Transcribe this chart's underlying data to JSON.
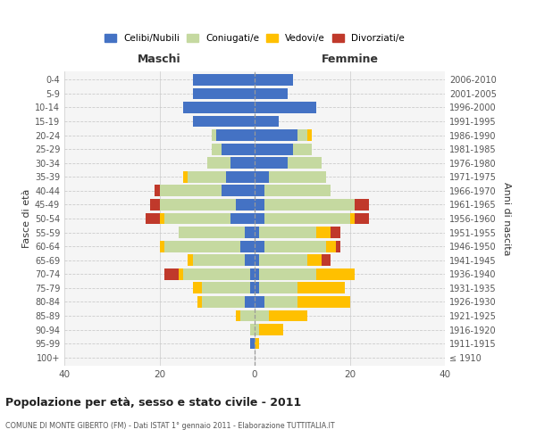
{
  "age_groups": [
    "100+",
    "95-99",
    "90-94",
    "85-89",
    "80-84",
    "75-79",
    "70-74",
    "65-69",
    "60-64",
    "55-59",
    "50-54",
    "45-49",
    "40-44",
    "35-39",
    "30-34",
    "25-29",
    "20-24",
    "15-19",
    "10-14",
    "5-9",
    "0-4"
  ],
  "birth_years": [
    "≤ 1910",
    "1911-1915",
    "1916-1920",
    "1921-1925",
    "1926-1930",
    "1931-1935",
    "1936-1940",
    "1941-1945",
    "1946-1950",
    "1951-1955",
    "1956-1960",
    "1961-1965",
    "1966-1970",
    "1971-1975",
    "1976-1980",
    "1981-1985",
    "1986-1990",
    "1991-1995",
    "1996-2000",
    "2001-2005",
    "2006-2010"
  ],
  "maschi": {
    "celibi": [
      0,
      1,
      0,
      0,
      2,
      1,
      1,
      2,
      3,
      2,
      5,
      4,
      7,
      6,
      5,
      7,
      8,
      13,
      15,
      13,
      13
    ],
    "coniugati": [
      0,
      0,
      1,
      3,
      9,
      10,
      14,
      11,
      16,
      14,
      14,
      16,
      13,
      8,
      5,
      2,
      1,
      0,
      0,
      0,
      0
    ],
    "vedovi": [
      0,
      0,
      0,
      1,
      1,
      2,
      1,
      1,
      1,
      0,
      1,
      0,
      0,
      1,
      0,
      0,
      0,
      0,
      0,
      0,
      0
    ],
    "divorziati": [
      0,
      0,
      0,
      0,
      0,
      0,
      3,
      0,
      0,
      0,
      3,
      2,
      1,
      0,
      0,
      0,
      0,
      0,
      0,
      0,
      0
    ]
  },
  "femmine": {
    "nubili": [
      0,
      0,
      0,
      0,
      2,
      1,
      1,
      1,
      2,
      1,
      2,
      2,
      2,
      3,
      7,
      8,
      9,
      5,
      13,
      7,
      8
    ],
    "coniugate": [
      0,
      0,
      1,
      3,
      7,
      8,
      12,
      10,
      13,
      12,
      18,
      19,
      14,
      12,
      7,
      4,
      2,
      0,
      0,
      0,
      0
    ],
    "vedove": [
      0,
      1,
      5,
      8,
      11,
      10,
      8,
      3,
      2,
      3,
      1,
      0,
      0,
      0,
      0,
      0,
      1,
      0,
      0,
      0,
      0
    ],
    "divorziate": [
      0,
      0,
      0,
      0,
      0,
      0,
      0,
      2,
      1,
      2,
      3,
      3,
      0,
      0,
      0,
      0,
      0,
      0,
      0,
      0,
      0
    ]
  },
  "color_celibi": "#4472c4",
  "color_coniugati": "#c5d9a0",
  "color_vedovi": "#ffc000",
  "color_divorziati": "#c0392b",
  "xlim": 40,
  "title": "Popolazione per età, sesso e stato civile - 2011",
  "subtitle": "COMUNE DI MONTE GIBERTO (FM) - Dati ISTAT 1° gennaio 2011 - Elaborazione TUTTITALIA.IT",
  "ylabel_left": "Fasce di età",
  "ylabel_right": "Anni di nascita",
  "xlabel_maschi": "Maschi",
  "xlabel_femmine": "Femmine",
  "bg_color": "#ffffff",
  "plot_bg": "#f5f5f5",
  "grid_color": "#cccccc"
}
